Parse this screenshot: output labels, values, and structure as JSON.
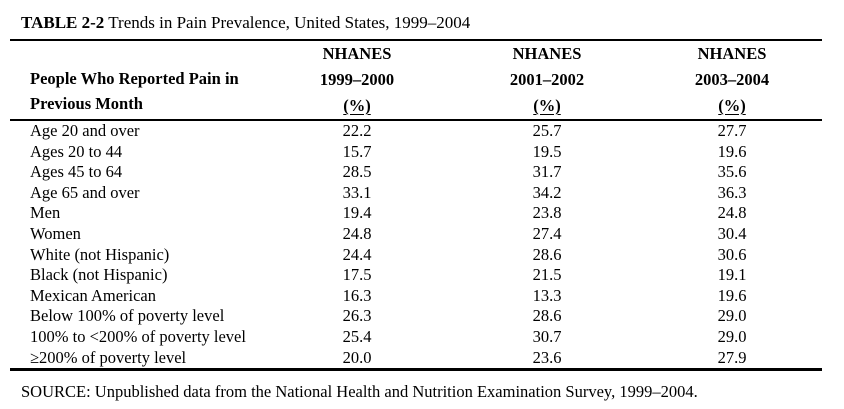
{
  "page": {
    "title_label": "TABLE 2-2",
    "title_text": " Trends in Pain Prevalence, United States, 1999–2004",
    "source": "SOURCE: Unpublished data from the National Health and Nutrition Examination Survey, 1999–2004."
  },
  "colors": {
    "text": "#000000",
    "background": "#ffffff",
    "rule": "#000000"
  },
  "table": {
    "row_header_line1": "People Who Reported Pain in",
    "row_header_line2": "Previous Month",
    "columns": [
      {
        "survey": "NHANES",
        "years": "1999–2000",
        "unit": "(%)"
      },
      {
        "survey": "NHANES",
        "years": "2001–2002",
        "unit": "(%)"
      },
      {
        "survey": "NHANES",
        "years": "2003–2004",
        "unit": "(%)"
      }
    ],
    "rows": [
      {
        "label": "Age 20 and over",
        "values": [
          "22.2",
          "25.7",
          "27.7"
        ]
      },
      {
        "label": "Ages 20 to 44",
        "values": [
          "15.7",
          "19.5",
          "19.6"
        ]
      },
      {
        "label": "Ages 45 to 64",
        "values": [
          "28.5",
          "31.7",
          "35.6"
        ]
      },
      {
        "label": "Age 65 and over",
        "values": [
          "33.1",
          "34.2",
          "36.3"
        ]
      },
      {
        "label": "Men",
        "values": [
          "19.4",
          "23.8",
          "24.8"
        ]
      },
      {
        "label": "Women",
        "values": [
          "24.8",
          "27.4",
          "30.4"
        ]
      },
      {
        "label": "White (not Hispanic)",
        "values": [
          "24.4",
          "28.6",
          "30.6"
        ]
      },
      {
        "label": "Black (not Hispanic)",
        "values": [
          "17.5",
          "21.5",
          "19.1"
        ]
      },
      {
        "label": "Mexican American",
        "values": [
          "16.3",
          "13.3",
          "19.6"
        ]
      },
      {
        "label": "Below 100% of poverty level",
        "values": [
          "26.3",
          "28.6",
          "29.0"
        ]
      },
      {
        "label": "100% to <200% of poverty level",
        "values": [
          "25.4",
          "30.7",
          "29.0"
        ]
      },
      {
        "label": "≥200% of poverty level",
        "values": [
          "20.0",
          "23.6",
          "27.9"
        ]
      }
    ]
  }
}
